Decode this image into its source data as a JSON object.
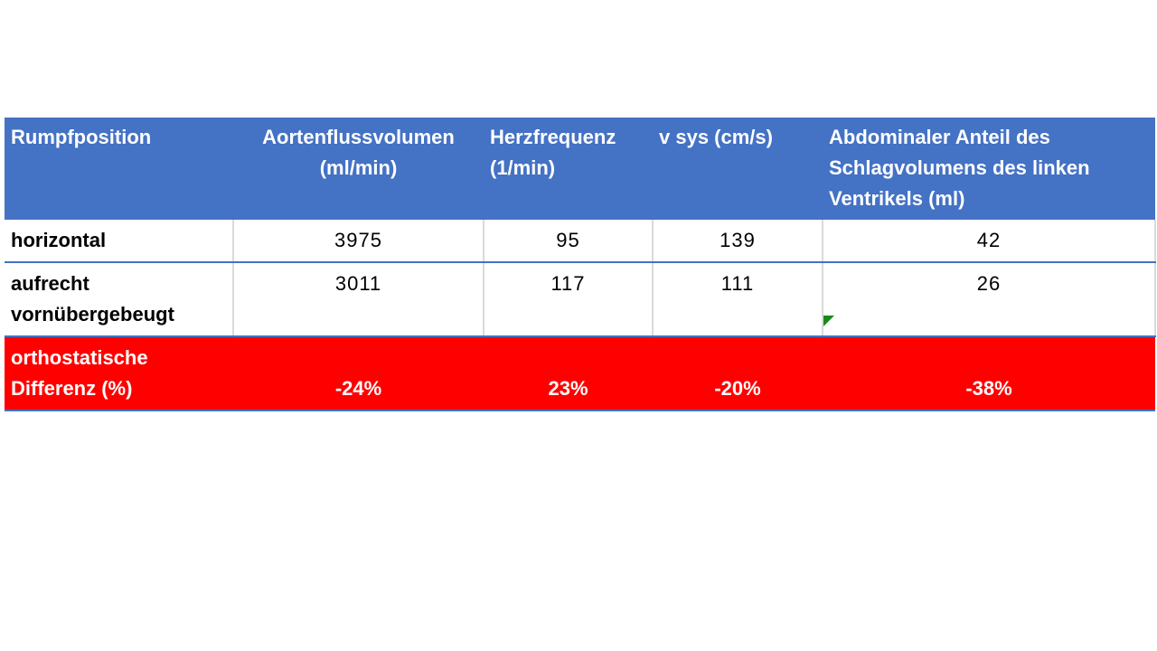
{
  "table": {
    "header": [
      "Rumpfposition",
      "Aortenflussvolumen (ml/min)",
      "Herzfrequenz (1/min)",
      "v sys (cm/s)",
      "Abdominaler Anteil des Schlagvolumens des linken Ventrikels (ml)"
    ],
    "rows": [
      [
        "horizontal",
        3975,
        95,
        139,
        42
      ],
      [
        "aufrecht vornübergebeugt",
        3011,
        117,
        111,
        26
      ]
    ],
    "difference": [
      "orthostatische Differenz (%)",
      "-24%",
      "23%",
      "-20%",
      "-38%"
    ]
  }
}
